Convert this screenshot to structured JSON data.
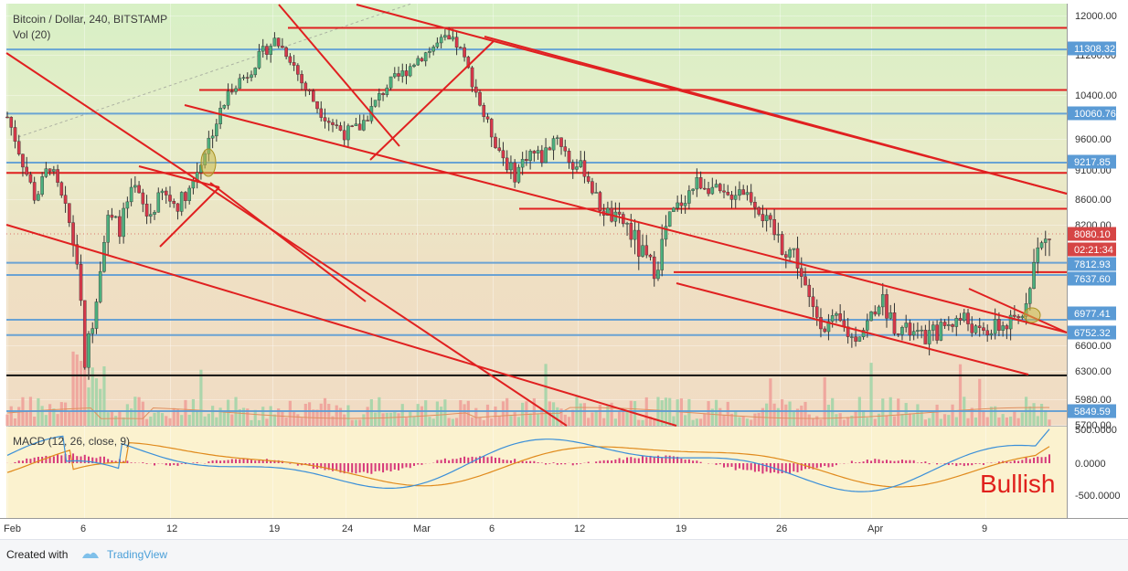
{
  "header": {
    "symbol_line": "Bitcoin / Dollar, 240, BITSTAMP",
    "volume_line": "Vol (20)"
  },
  "macd": {
    "label": "MACD (12, 26, close, 9)",
    "axis_labels": [
      "500.0000",
      "0.0000",
      "-500.0000"
    ]
  },
  "annotation": "Bullish",
  "footer": {
    "created_with": "Created with",
    "brand": "TradingView"
  },
  "colors": {
    "bull_candle": "#4caf7d",
    "bear_candle": "#d6384a",
    "trendline": "#e02020",
    "level_line": "#5b9bd5",
    "support_line": "#111111",
    "tag_blue": "#5b9bd5",
    "tag_red": "#d64545",
    "macd_line": "#3a8fd9",
    "signal_line": "#e08a1c",
    "histogram": "#d6387a"
  },
  "chart_data": {
    "type": "candlestick",
    "timeframe": "240",
    "exchange": "BITSTAMP",
    "ylim": [
      5700,
      12200
    ],
    "y_ticks": [
      12000,
      11200,
      10400,
      9600,
      9100,
      8600,
      8200,
      7800,
      7637.6,
      6600,
      6300,
      5980,
      5700
    ],
    "y_tick_labels": [
      "12000.00",
      "11200.00",
      "10400.00",
      "9600.00",
      "9100.00",
      "8600.00",
      "8200.00",
      "",
      "",
      "6600.00",
      "6300.00",
      "5980.00",
      "5700.00"
    ],
    "x_tick_labels": [
      "Feb",
      "6",
      "12",
      "19",
      "24",
      "Mar",
      "6",
      "12",
      "19",
      "26",
      "Apr",
      "9"
    ],
    "horizontal_levels": [
      11308.32,
      10060.76,
      9217.85,
      7812.93,
      7637.6,
      6977.41,
      6752.32,
      5849.59
    ],
    "price_tags": [
      {
        "label": "11308.32",
        "value": 11308.32,
        "style": "blue"
      },
      {
        "label": "10060.76",
        "value": 10060.76,
        "style": "blue"
      },
      {
        "label": "9217.85",
        "value": 9217.85,
        "style": "blue"
      },
      {
        "label": "8080.10",
        "value": 8080.1,
        "style": "red"
      },
      {
        "label": "02:21:34",
        "value": 7900,
        "style": "red"
      },
      {
        "label": "7812.93",
        "value": 7812.93,
        "style": "blue"
      },
      {
        "label": "7637.60",
        "value": 7637.6,
        "style": "blue"
      },
      {
        "label": "6977.41",
        "value": 6977.41,
        "style": "blue"
      },
      {
        "label": "6752.32",
        "value": 6752.32,
        "style": "blue"
      },
      {
        "label": "5849.59",
        "value": 5849.59,
        "style": "blue"
      }
    ],
    "red_horizontals": [
      11750,
      10500,
      9050,
      8450,
      7680
    ],
    "support_level": 6250,
    "close_path": [
      {
        "t": 0,
        "p": 10000
      },
      {
        "t": 1,
        "p": 9300
      },
      {
        "t": 2,
        "p": 8600
      },
      {
        "t": 3,
        "p": 9200
      },
      {
        "t": 4,
        "p": 8500
      },
      {
        "t": 5,
        "p": 7800
      },
      {
        "t": 5.5,
        "p": 6400
      },
      {
        "t": 6,
        "p": 6900
      },
      {
        "t": 6.5,
        "p": 7600
      },
      {
        "t": 7,
        "p": 8300
      },
      {
        "t": 8,
        "p": 8200
      },
      {
        "t": 9,
        "p": 8800
      },
      {
        "t": 10,
        "p": 8300
      },
      {
        "t": 11,
        "p": 8700
      },
      {
        "t": 12,
        "p": 8500
      },
      {
        "t": 13,
        "p": 8800
      },
      {
        "t": 14,
        "p": 9400
      },
      {
        "t": 15,
        "p": 10000
      },
      {
        "t": 16,
        "p": 10600
      },
      {
        "t": 17,
        "p": 10800
      },
      {
        "t": 18,
        "p": 11200
      },
      {
        "t": 19,
        "p": 11500
      },
      {
        "t": 20,
        "p": 11200
      },
      {
        "t": 21,
        "p": 10600
      },
      {
        "t": 22,
        "p": 10200
      },
      {
        "t": 23,
        "p": 9900
      },
      {
        "t": 24,
        "p": 9700
      },
      {
        "t": 25,
        "p": 9800
      },
      {
        "t": 26,
        "p": 10200
      },
      {
        "t": 27,
        "p": 10600
      },
      {
        "t": 28,
        "p": 10800
      },
      {
        "t": 29,
        "p": 11100
      },
      {
        "t": 30,
        "p": 11300
      },
      {
        "t": 31,
        "p": 11500
      },
      {
        "t": 32,
        "p": 11400
      },
      {
        "t": 33,
        "p": 10700
      },
      {
        "t": 34,
        "p": 9900
      },
      {
        "t": 35,
        "p": 9400
      },
      {
        "t": 36,
        "p": 9000
      },
      {
        "t": 37,
        "p": 9400
      },
      {
        "t": 38,
        "p": 9300
      },
      {
        "t": 39,
        "p": 9700
      },
      {
        "t": 40,
        "p": 9200
      },
      {
        "t": 41,
        "p": 9100
      },
      {
        "t": 42,
        "p": 8500
      },
      {
        "t": 43,
        "p": 8300
      },
      {
        "t": 44,
        "p": 8200
      },
      {
        "t": 45,
        "p": 7900
      },
      {
        "t": 46,
        "p": 7700
      },
      {
        "t": 47,
        "p": 8300
      },
      {
        "t": 48,
        "p": 8600
      },
      {
        "t": 49,
        "p": 8900
      },
      {
        "t": 50,
        "p": 8800
      },
      {
        "t": 51,
        "p": 8600
      },
      {
        "t": 52,
        "p": 8800
      },
      {
        "t": 53,
        "p": 8600
      },
      {
        "t": 54,
        "p": 8200
      },
      {
        "t": 55,
        "p": 8000
      },
      {
        "t": 56,
        "p": 7900
      },
      {
        "t": 57,
        "p": 7200
      },
      {
        "t": 58,
        "p": 6900
      },
      {
        "t": 59,
        "p": 6950
      },
      {
        "t": 60,
        "p": 6700
      },
      {
        "t": 61,
        "p": 6900
      },
      {
        "t": 62,
        "p": 7300
      },
      {
        "t": 63,
        "p": 6900
      },
      {
        "t": 64,
        "p": 6800
      },
      {
        "t": 65,
        "p": 6700
      },
      {
        "t": 66,
        "p": 6800
      },
      {
        "t": 67,
        "p": 6950
      },
      {
        "t": 68,
        "p": 7000
      },
      {
        "t": 69,
        "p": 6750
      },
      {
        "t": 70,
        "p": 6850
      },
      {
        "t": 71,
        "p": 6900
      },
      {
        "t": 72,
        "p": 7000
      },
      {
        "t": 73,
        "p": 7900
      },
      {
        "t": 74,
        "p": 8080
      }
    ],
    "annotation_text": "Bullish"
  }
}
